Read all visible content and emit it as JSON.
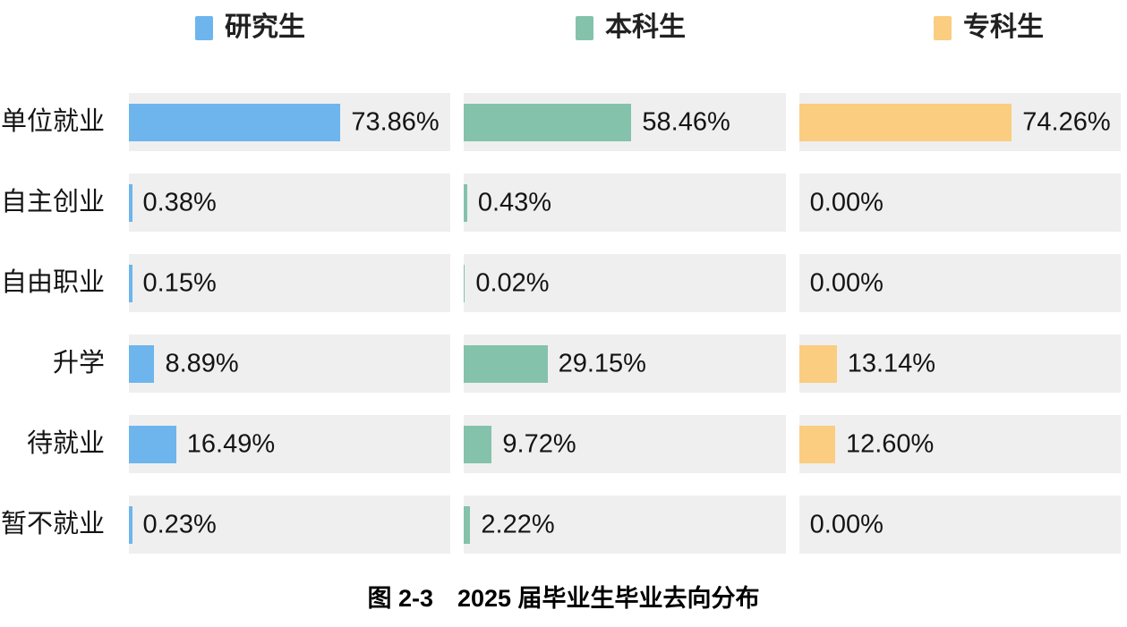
{
  "legend": {
    "items": [
      {
        "label": "研究生",
        "color": "#6db5ec"
      },
      {
        "label": "本科生",
        "color": "#84c2ac"
      },
      {
        "label": "专科生",
        "color": "#facd80"
      }
    ]
  },
  "caption": {
    "text": "图 2-3　2025 届毕业生毕业去向分布"
  },
  "colors": {
    "bar_blue": "#6db5ec",
    "bar_green": "#84c2ac",
    "bar_orange": "#facd80",
    "track_gray": "#efefef",
    "text": "#141414"
  },
  "chart_data": {
    "type": "bar",
    "orientation": "horizontal",
    "title": "图 2-3　2025 届毕业生毕业去向分布",
    "categories": [
      "单位就业",
      "自主创业",
      "自由职业",
      "升学",
      "待就业",
      "暂不就业"
    ],
    "series": [
      {
        "name": "研究生",
        "color": "#6db5ec",
        "values": [
          73.86,
          0.38,
          0.15,
          8.89,
          16.49,
          0.23
        ],
        "labels": [
          "73.86%",
          "0.38%",
          "0.15%",
          "8.89%",
          "16.49%",
          "0.23%"
        ]
      },
      {
        "name": "本科生",
        "color": "#84c2ac",
        "values": [
          58.46,
          0.43,
          0.02,
          29.15,
          9.72,
          2.22
        ],
        "labels": [
          "58.46%",
          "0.43%",
          "0.02%",
          "29.15%",
          "9.72%",
          "2.22%"
        ]
      },
      {
        "name": "专科生",
        "color": "#facd80",
        "values": [
          74.26,
          0.0,
          0.0,
          13.14,
          12.6,
          0.0
        ],
        "labels": [
          "74.26%",
          "0.00%",
          "0.00%",
          "13.14%",
          "12.60%",
          "0.00%"
        ]
      }
    ],
    "value_unit": "%",
    "axis_max": 100,
    "grid": false,
    "legend_position": "top",
    "value_label_position": "right-of-bar"
  }
}
